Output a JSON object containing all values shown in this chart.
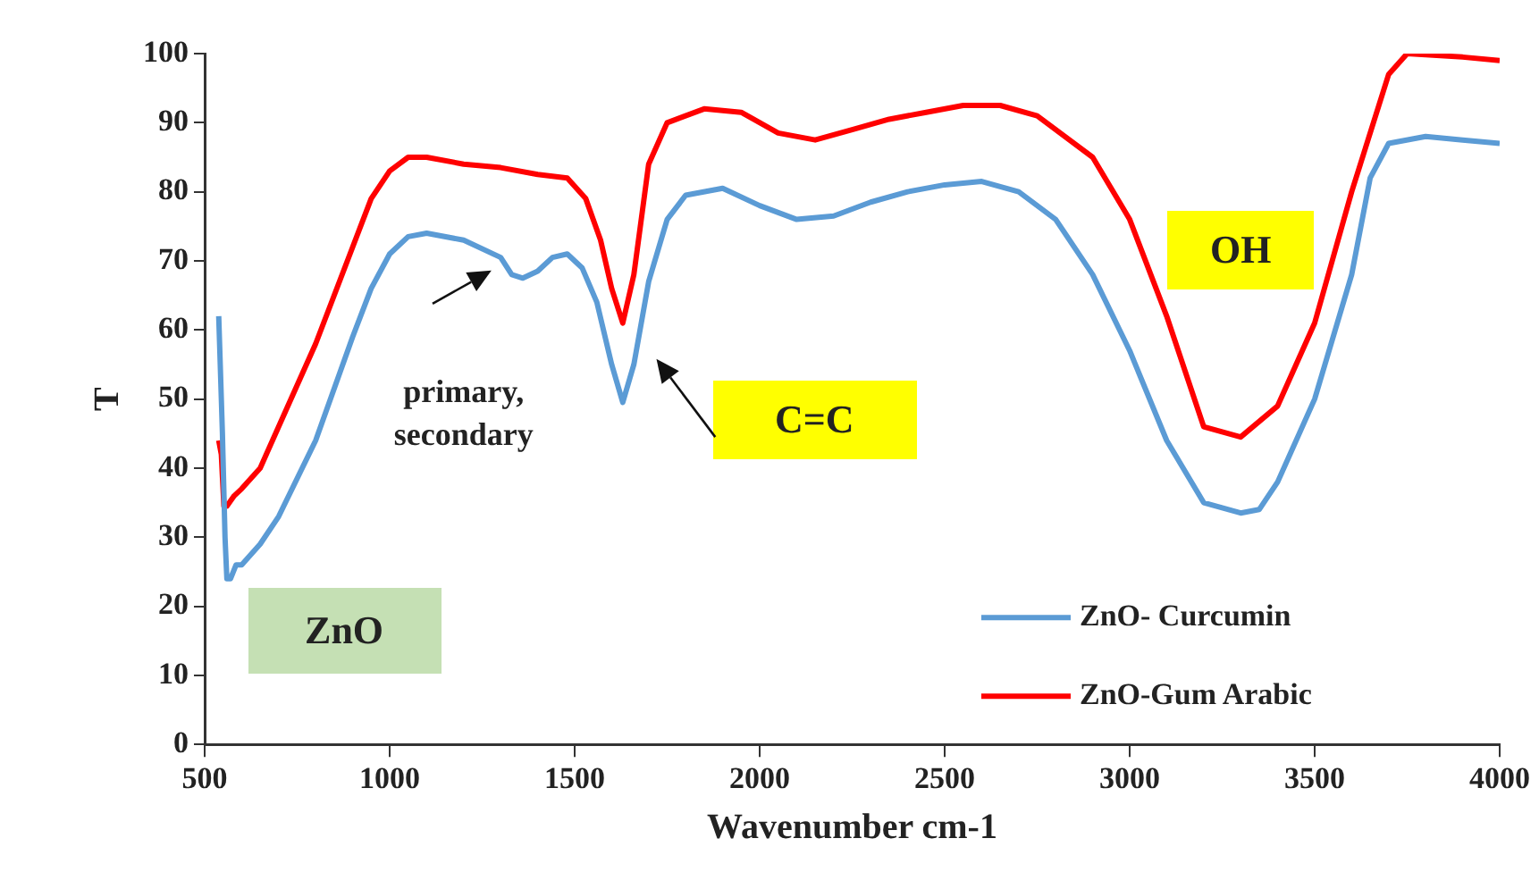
{
  "chart_data": {
    "type": "line",
    "xlabel": "Wavenumber cm-1",
    "ylabel": "T",
    "xlim": [
      500,
      4000
    ],
    "xticks": [
      500,
      1000,
      1500,
      2000,
      2500,
      3000,
      3500,
      4000
    ],
    "ylim": [
      0,
      100
    ],
    "yticks": [
      0,
      10,
      20,
      30,
      40,
      50,
      60,
      70,
      80,
      90,
      100
    ],
    "grid": false,
    "legend": "bottom right",
    "marker": "none",
    "line_style": "solid",
    "annotations": [
      "ZnO",
      "primary, secondary",
      "C=C",
      "OH"
    ],
    "series": [
      {
        "name": "ZnO- Curcumin",
        "color": "#5b9bd5",
        "x": [
          538,
          548,
          555,
          560,
          570,
          585,
          600,
          650,
          700,
          800,
          900,
          950,
          1000,
          1050,
          1100,
          1200,
          1300,
          1330,
          1360,
          1400,
          1440,
          1480,
          1520,
          1560,
          1600,
          1630,
          1660,
          1700,
          1750,
          1800,
          1900,
          2000,
          2100,
          2200,
          2300,
          2400,
          2500,
          2600,
          2700,
          2800,
          2900,
          3000,
          3100,
          3200,
          3300,
          3350,
          3400,
          3500,
          3600,
          3650,
          3700,
          3800,
          3900,
          4000
        ],
        "values": [
          62,
          45,
          30,
          24,
          24,
          26,
          26,
          29,
          33,
          44,
          59,
          66,
          71,
          73.5,
          74,
          73,
          70.5,
          68,
          67.5,
          68.5,
          70.5,
          71,
          69,
          64,
          55,
          49.5,
          55,
          67,
          76,
          79.5,
          80.5,
          78,
          76,
          76.5,
          78.5,
          80,
          81,
          81.5,
          80,
          76,
          68,
          57,
          44,
          35,
          33.5,
          34,
          38,
          50,
          68,
          82,
          87,
          88,
          87.5,
          87
        ]
      },
      {
        "name": "ZnO-Gum Arabic",
        "color": "#ff0000",
        "x": [
          538,
          545,
          552,
          560,
          580,
          600,
          650,
          700,
          800,
          900,
          950,
          1000,
          1050,
          1100,
          1200,
          1300,
          1400,
          1480,
          1530,
          1570,
          1600,
          1630,
          1660,
          1700,
          1750,
          1850,
          1950,
          2050,
          2150,
          2250,
          2350,
          2450,
          2550,
          2650,
          2750,
          2900,
          3000,
          3100,
          3200,
          3300,
          3400,
          3500,
          3600,
          3700,
          3750,
          3900,
          4000
        ],
        "values": [
          44,
          42,
          34.5,
          34.5,
          36,
          37,
          40,
          46,
          58,
          72,
          79,
          83,
          85,
          85,
          84,
          83.5,
          82.5,
          82,
          79,
          73,
          66,
          61,
          68,
          84,
          90,
          92,
          91.5,
          88.5,
          87.5,
          89,
          90.5,
          91.5,
          92.5,
          92.5,
          91,
          85,
          76,
          62,
          46,
          44.5,
          49,
          61,
          80,
          97,
          100,
          99.5,
          99
        ]
      }
    ]
  }
}
